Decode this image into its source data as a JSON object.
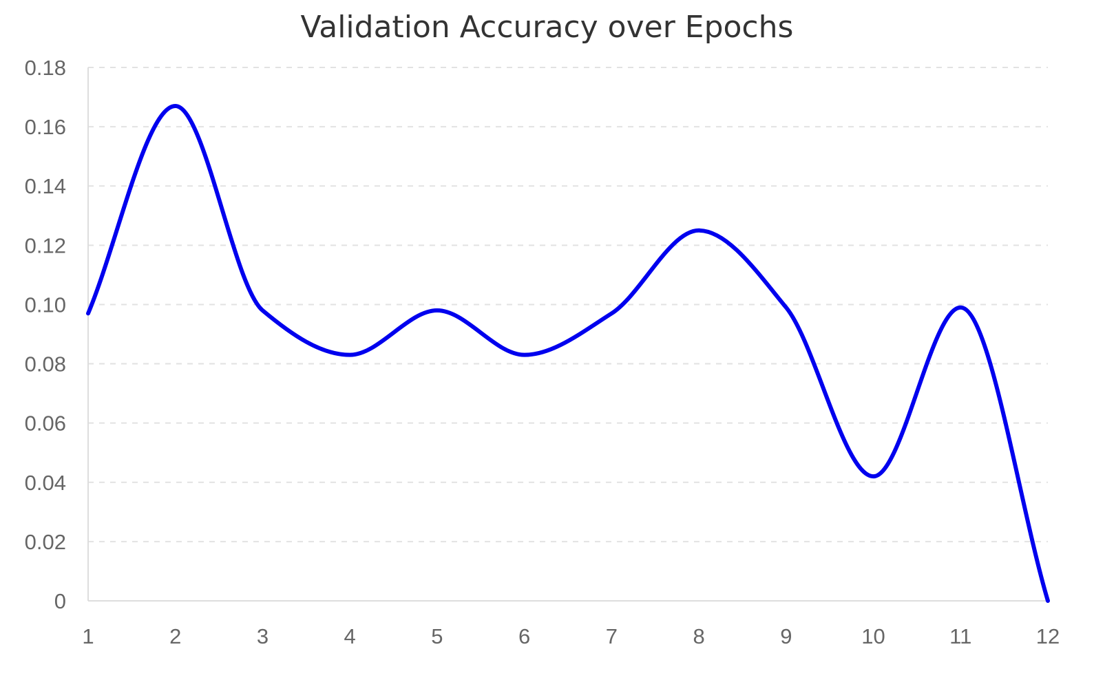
{
  "chart_data": {
    "type": "line",
    "title": "Validation Accuracy over Epochs",
    "xlabel": "",
    "ylabel": "",
    "categories": [
      "1",
      "2",
      "3",
      "4",
      "5",
      "6",
      "7",
      "8",
      "9",
      "10",
      "11",
      "12"
    ],
    "series": [
      {
        "values": [
          0.097,
          0.167,
          0.098,
          0.083,
          0.098,
          0.083,
          0.097,
          0.125,
          0.099,
          0.042,
          0.099,
          0.0
        ]
      }
    ],
    "y_ticks": [
      "0",
      "0.02",
      "0.04",
      "0.06",
      "0.08",
      "0.10",
      "0.12",
      "0.14",
      "0.16",
      "0.18"
    ],
    "y_tick_values": [
      0,
      0.02,
      0.04,
      0.06,
      0.08,
      0.1,
      0.12,
      0.14,
      0.16,
      0.18
    ],
    "ylim": [
      0,
      0.18
    ],
    "grid": true,
    "smooth": true,
    "colors": {
      "line": "#0000ee",
      "grid": "#e2e2e2",
      "axis": "#dddddd",
      "tick_text": "#666666",
      "title_text": "#333333"
    }
  }
}
